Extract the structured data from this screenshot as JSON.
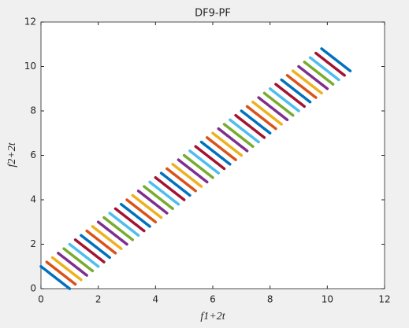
{
  "chart_data": {
    "type": "line",
    "title": "DF9-PF",
    "xlabel": "f1+2t",
    "ylabel": "f2+2t",
    "xlim": [
      0,
      12
    ],
    "ylim": [
      0,
      12
    ],
    "xticks": [
      0,
      2,
      4,
      6,
      8,
      10,
      12
    ],
    "yticks": [
      0,
      2,
      4,
      6,
      8,
      10,
      12
    ],
    "series": [
      {
        "color": "#0072BD",
        "x": [
          0,
          1
        ],
        "values": [
          1,
          0
        ]
      },
      {
        "color": "#D95319",
        "x": [
          0.2,
          1.2
        ],
        "values": [
          1.2,
          0.2
        ]
      },
      {
        "color": "#EDB120",
        "x": [
          0.4,
          1.4
        ],
        "values": [
          1.4,
          0.4
        ]
      },
      {
        "color": "#7E2F8E",
        "x": [
          0.6,
          1.6
        ],
        "values": [
          1.6,
          0.6
        ]
      },
      {
        "color": "#77AC30",
        "x": [
          0.8,
          1.8
        ],
        "values": [
          1.8,
          0.8
        ]
      },
      {
        "color": "#4DBEEE",
        "x": [
          1,
          2
        ],
        "values": [
          2,
          1
        ]
      },
      {
        "color": "#A2142F",
        "x": [
          1.2,
          2.2
        ],
        "values": [
          2.2,
          1.2
        ]
      },
      {
        "color": "#0072BD",
        "x": [
          1.4,
          2.4
        ],
        "values": [
          2.4,
          1.4
        ]
      },
      {
        "color": "#D95319",
        "x": [
          1.6,
          2.6
        ],
        "values": [
          2.6,
          1.6
        ]
      },
      {
        "color": "#EDB120",
        "x": [
          1.8,
          2.8
        ],
        "values": [
          2.8,
          1.8
        ]
      },
      {
        "color": "#7E2F8E",
        "x": [
          2,
          3
        ],
        "values": [
          3,
          2
        ]
      },
      {
        "color": "#77AC30",
        "x": [
          2.2,
          3.2
        ],
        "values": [
          3.2,
          2.2
        ]
      },
      {
        "color": "#4DBEEE",
        "x": [
          2.4,
          3.4
        ],
        "values": [
          3.4,
          2.4
        ]
      },
      {
        "color": "#A2142F",
        "x": [
          2.6,
          3.6
        ],
        "values": [
          3.6,
          2.6
        ]
      },
      {
        "color": "#0072BD",
        "x": [
          2.8,
          3.8
        ],
        "values": [
          3.8,
          2.8
        ]
      },
      {
        "color": "#D95319",
        "x": [
          3,
          4
        ],
        "values": [
          4,
          3
        ]
      },
      {
        "color": "#EDB120",
        "x": [
          3.2,
          4.2
        ],
        "values": [
          4.2,
          3.2
        ]
      },
      {
        "color": "#7E2F8E",
        "x": [
          3.4,
          4.4
        ],
        "values": [
          4.4,
          3.4
        ]
      },
      {
        "color": "#77AC30",
        "x": [
          3.6,
          4.6
        ],
        "values": [
          4.6,
          3.6
        ]
      },
      {
        "color": "#4DBEEE",
        "x": [
          3.8,
          4.8
        ],
        "values": [
          4.8,
          3.8
        ]
      },
      {
        "color": "#A2142F",
        "x": [
          4,
          5
        ],
        "values": [
          5,
          4
        ]
      },
      {
        "color": "#0072BD",
        "x": [
          4.2,
          5.2
        ],
        "values": [
          5.2,
          4.2
        ]
      },
      {
        "color": "#D95319",
        "x": [
          4.4,
          5.4
        ],
        "values": [
          5.4,
          4.4
        ]
      },
      {
        "color": "#EDB120",
        "x": [
          4.6,
          5.6
        ],
        "values": [
          5.6,
          4.6
        ]
      },
      {
        "color": "#7E2F8E",
        "x": [
          4.8,
          5.8
        ],
        "values": [
          5.8,
          4.8
        ]
      },
      {
        "color": "#77AC30",
        "x": [
          5,
          6
        ],
        "values": [
          6,
          5
        ]
      },
      {
        "color": "#4DBEEE",
        "x": [
          5.2,
          6.2
        ],
        "values": [
          6.2,
          5.2
        ]
      },
      {
        "color": "#A2142F",
        "x": [
          5.4,
          6.4
        ],
        "values": [
          6.4,
          5.4
        ]
      },
      {
        "color": "#0072BD",
        "x": [
          5.6,
          6.6
        ],
        "values": [
          6.6,
          5.6
        ]
      },
      {
        "color": "#D95319",
        "x": [
          5.8,
          6.8
        ],
        "values": [
          6.8,
          5.8
        ]
      },
      {
        "color": "#EDB120",
        "x": [
          6,
          7
        ],
        "values": [
          7,
          6
        ]
      },
      {
        "color": "#7E2F8E",
        "x": [
          6.2,
          7.2
        ],
        "values": [
          7.2,
          6.2
        ]
      },
      {
        "color": "#77AC30",
        "x": [
          6.4,
          7.4
        ],
        "values": [
          7.4,
          6.4
        ]
      },
      {
        "color": "#4DBEEE",
        "x": [
          6.6,
          7.6
        ],
        "values": [
          7.6,
          6.6
        ]
      },
      {
        "color": "#A2142F",
        "x": [
          6.8,
          7.8
        ],
        "values": [
          7.8,
          6.8
        ]
      },
      {
        "color": "#0072BD",
        "x": [
          7,
          8
        ],
        "values": [
          8,
          7
        ]
      },
      {
        "color": "#D95319",
        "x": [
          7.2,
          8.2
        ],
        "values": [
          8.2,
          7.2
        ]
      },
      {
        "color": "#EDB120",
        "x": [
          7.4,
          8.4
        ],
        "values": [
          8.4,
          7.4
        ]
      },
      {
        "color": "#7E2F8E",
        "x": [
          7.6,
          8.6
        ],
        "values": [
          8.6,
          7.6
        ]
      },
      {
        "color": "#77AC30",
        "x": [
          7.8,
          8.8
        ],
        "values": [
          8.8,
          7.8
        ]
      },
      {
        "color": "#4DBEEE",
        "x": [
          8,
          9
        ],
        "values": [
          9,
          8
        ]
      },
      {
        "color": "#A2142F",
        "x": [
          8.2,
          9.2
        ],
        "values": [
          9.2,
          8.2
        ]
      },
      {
        "color": "#0072BD",
        "x": [
          8.4,
          9.4
        ],
        "values": [
          9.4,
          8.4
        ]
      },
      {
        "color": "#D95319",
        "x": [
          8.6,
          9.6
        ],
        "values": [
          9.6,
          8.6
        ]
      },
      {
        "color": "#EDB120",
        "x": [
          8.8,
          9.8
        ],
        "values": [
          9.8,
          8.8
        ]
      },
      {
        "color": "#7E2F8E",
        "x": [
          9,
          10
        ],
        "values": [
          10,
          9
        ]
      },
      {
        "color": "#77AC30",
        "x": [
          9.2,
          10.2
        ],
        "values": [
          10.2,
          9.2
        ]
      },
      {
        "color": "#4DBEEE",
        "x": [
          9.4,
          10.4
        ],
        "values": [
          10.4,
          9.4
        ]
      },
      {
        "color": "#A2142F",
        "x": [
          9.6,
          10.6
        ],
        "values": [
          10.6,
          9.6
        ]
      },
      {
        "color": "#0072BD",
        "x": [
          9.8,
          10.8
        ],
        "values": [
          10.8,
          9.8
        ]
      }
    ]
  }
}
